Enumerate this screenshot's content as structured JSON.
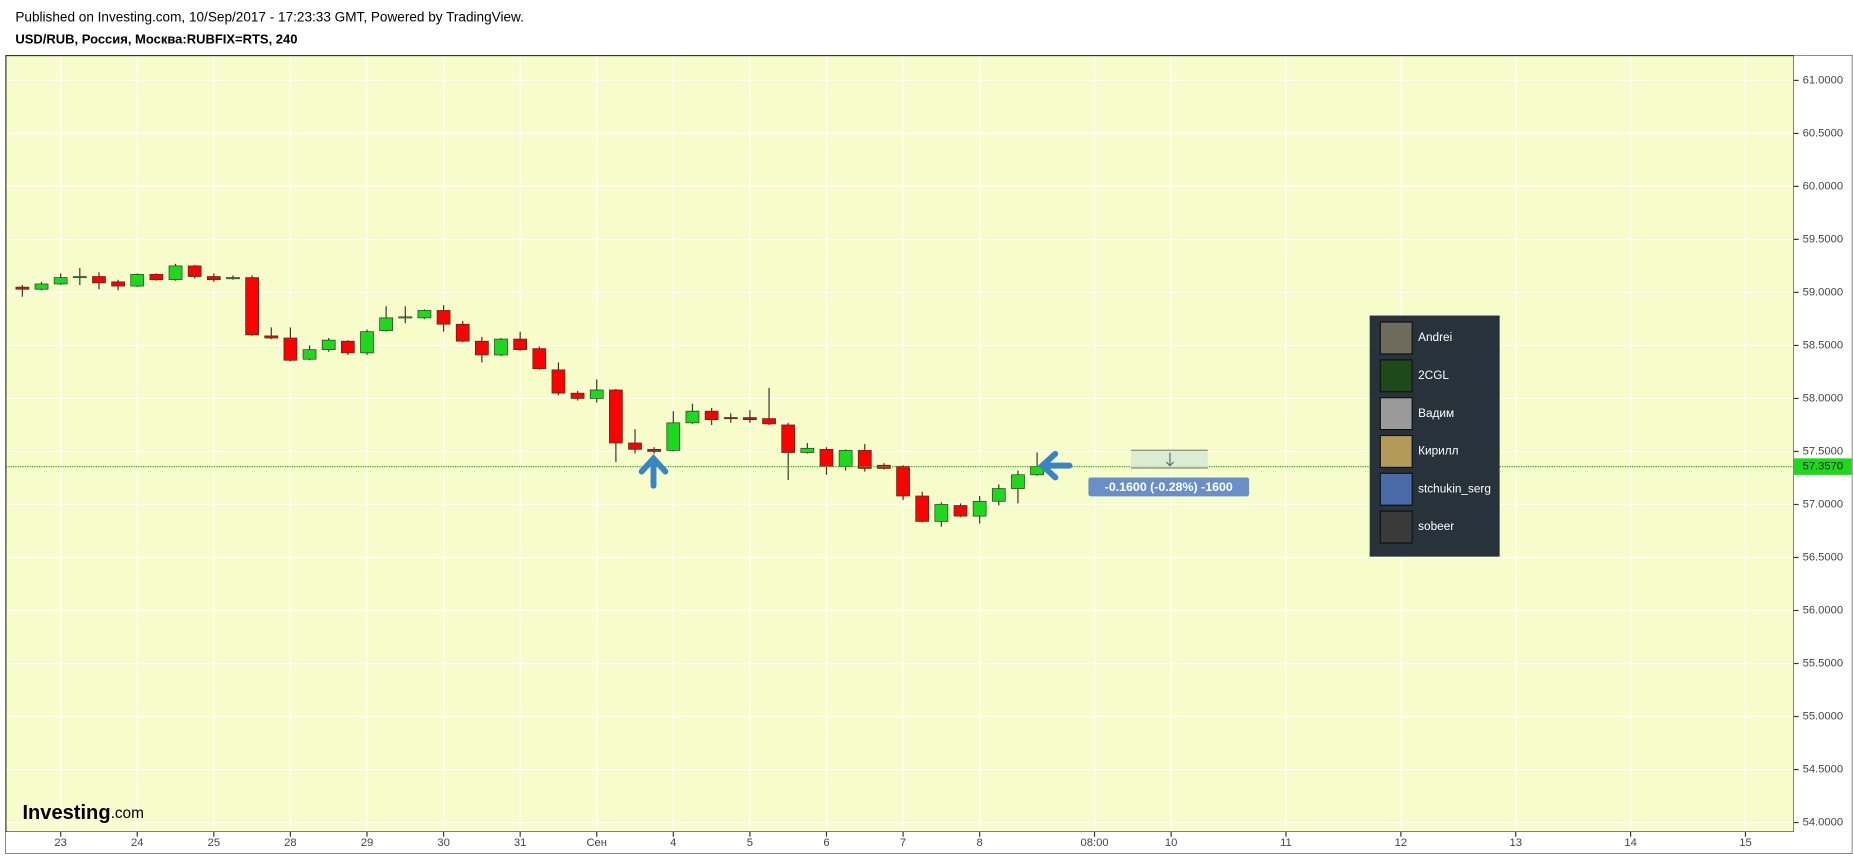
{
  "header": {
    "published": "Published on Investing.com, 10/Sep/2017 - 17:23:33 GMT, Powered by TradingView.",
    "symbol": "USD/RUB, Россия, Москва:RUBFIX=RTS, 240"
  },
  "chart_data": {
    "type": "candlestick",
    "up_color": "#1ed81e",
    "down_color": "#ff0000",
    "open": [
      59.05,
      59.03,
      59.08,
      59.14,
      59.15,
      59.1,
      59.06,
      59.17,
      59.12,
      59.25,
      59.15,
      59.13,
      59.14,
      58.59,
      58.57,
      58.37,
      58.46,
      58.54,
      58.43,
      58.64,
      58.76,
      58.76,
      58.83,
      58.7,
      58.54,
      58.41,
      58.56,
      58.47,
      58.27,
      58.05,
      58.0,
      58.08,
      57.58,
      57.52,
      57.51,
      57.77,
      57.88,
      57.82,
      57.82,
      57.81,
      57.75,
      57.49,
      57.52,
      57.36,
      57.51,
      57.37,
      57.36,
      57.08,
      56.84,
      56.99,
      56.89,
      57.03,
      57.15,
      57.28
    ],
    "high": [
      59.07,
      59.1,
      59.18,
      59.23,
      59.19,
      59.12,
      59.18,
      59.18,
      59.27,
      59.26,
      59.18,
      59.16,
      59.16,
      58.67,
      58.67,
      58.5,
      58.57,
      58.55,
      58.65,
      58.87,
      58.87,
      58.84,
      58.88,
      58.73,
      58.58,
      58.57,
      58.63,
      58.49,
      58.34,
      58.07,
      58.18,
      58.09,
      57.71,
      57.54,
      57.88,
      57.95,
      57.91,
      57.86,
      57.89,
      58.1,
      57.77,
      57.58,
      57.54,
      57.52,
      57.57,
      57.39,
      57.37,
      57.12,
      57.02,
      57.01,
      57.08,
      57.19,
      57.32,
      57.49
    ],
    "low": [
      58.96,
      59.02,
      59.07,
      59.07,
      59.03,
      59.02,
      59.05,
      59.11,
      59.11,
      59.13,
      59.1,
      59.12,
      58.59,
      58.56,
      58.35,
      58.36,
      58.44,
      58.41,
      58.41,
      58.63,
      58.71,
      58.75,
      58.63,
      58.53,
      58.34,
      58.4,
      58.45,
      58.27,
      58.03,
      57.98,
      57.96,
      57.4,
      57.48,
      57.48,
      57.5,
      57.76,
      57.75,
      57.77,
      57.77,
      57.75,
      57.23,
      57.48,
      57.28,
      57.32,
      57.31,
      57.33,
      57.04,
      56.83,
      56.79,
      56.88,
      56.82,
      56.99,
      57.01,
      57.27
    ],
    "close": [
      59.03,
      59.08,
      59.14,
      59.15,
      59.09,
      59.06,
      59.17,
      59.12,
      59.25,
      59.15,
      59.12,
      59.14,
      58.6,
      58.57,
      58.36,
      58.46,
      58.55,
      58.43,
      58.63,
      58.76,
      58.77,
      58.83,
      58.7,
      58.54,
      58.41,
      58.56,
      58.46,
      58.28,
      58.05,
      58.0,
      58.08,
      57.58,
      57.52,
      57.5,
      57.77,
      57.88,
      57.8,
      57.81,
      57.8,
      57.76,
      57.49,
      57.53,
      57.36,
      57.51,
      57.34,
      57.34,
      57.08,
      56.84,
      57.0,
      56.89,
      57.03,
      57.15,
      57.28,
      57.357
    ],
    "xlim": [
      -0.86,
      92.53
    ],
    "xticks": [
      {
        "value": 2,
        "label": "23"
      },
      {
        "value": 6,
        "label": "24"
      },
      {
        "value": 10,
        "label": "25"
      },
      {
        "value": 14,
        "label": "28"
      },
      {
        "value": 18,
        "label": "29"
      },
      {
        "value": 22,
        "label": "30"
      },
      {
        "value": 26,
        "label": "31"
      },
      {
        "value": 30,
        "label": "Сен"
      },
      {
        "value": 34,
        "label": "4"
      },
      {
        "value": 38,
        "label": "5"
      },
      {
        "value": 42,
        "label": "6"
      },
      {
        "value": 46,
        "label": "7"
      },
      {
        "value": 50,
        "label": "8"
      },
      {
        "value": 56,
        "label": "08:00"
      },
      {
        "value": 60,
        "label": "10"
      },
      {
        "value": 66,
        "label": "11"
      },
      {
        "value": 72,
        "label": "12"
      },
      {
        "value": 78,
        "label": "13"
      },
      {
        "value": 84,
        "label": "14"
      },
      {
        "value": 90,
        "label": "15"
      }
    ],
    "ylim": [
      53.911,
      61.234
    ],
    "yticks": [
      {
        "value": 54,
        "label": "54.0000"
      },
      {
        "value": 54.5,
        "label": "54.5000"
      },
      {
        "value": 55,
        "label": "55.0000"
      },
      {
        "value": 55.5,
        "label": "55.5000"
      },
      {
        "value": 56,
        "label": "56.0000"
      },
      {
        "value": 56.5,
        "label": "56.5000"
      },
      {
        "value": 57,
        "label": "57.0000"
      },
      {
        "value": 57.5,
        "label": "57.5000"
      },
      {
        "value": 58,
        "label": "58.0000"
      },
      {
        "value": 58.5,
        "label": "58.5000"
      },
      {
        "value": 59,
        "label": "59.0000"
      },
      {
        "value": 59.5,
        "label": "59.5000"
      },
      {
        "value": 60,
        "label": "60.0000"
      },
      {
        "value": 60.5,
        "label": "60.5000"
      },
      {
        "value": 61,
        "label": "61.0000"
      }
    ],
    "last_price": {
      "value": 57.357,
      "label": "57.3570"
    },
    "annotation": "-0.1600 (-0.28%) -1600",
    "grid": true
  },
  "users": [
    "Andrei",
    "2CGL",
    "Вадим",
    "Кирилл",
    "stchukin_serg",
    "sobeer"
  ],
  "logo": {
    "brand": "Investing",
    "suffix": ".com"
  }
}
